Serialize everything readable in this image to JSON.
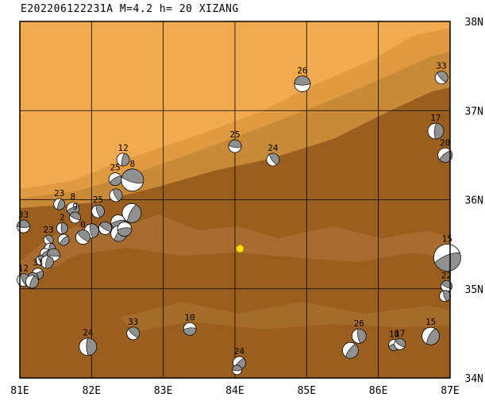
{
  "title": "E202206122231A M=4.2 h= 20 XIZANG",
  "map": {
    "lon_range": [
      81,
      87
    ],
    "lat_range": [
      34,
      38
    ],
    "lon_ticks": [
      {
        "lon": 81,
        "label": "81E"
      },
      {
        "lon": 82,
        "label": "82E"
      },
      {
        "lon": 83,
        "label": "83E"
      },
      {
        "lon": 84,
        "label": "84E"
      },
      {
        "lon": 85,
        "label": "85E"
      },
      {
        "lon": 86,
        "label": "86E"
      },
      {
        "lon": 87,
        "label": "87E"
      }
    ],
    "lat_ticks": [
      {
        "lat": 38,
        "label": "38N"
      },
      {
        "lat": 37,
        "label": "37N"
      },
      {
        "lat": 36,
        "label": "36N"
      },
      {
        "lat": 35,
        "label": "35N"
      },
      {
        "lat": 34,
        "label": "34N"
      }
    ],
    "colors": {
      "plain": "#f2aa4e",
      "slope": "#e19a42",
      "upland": "#c98a38",
      "plateau": "#9a5f1f",
      "ridge": "#b4793a",
      "grid": "#000000",
      "beachball_dark": "#909090",
      "beachball_light": "#ffffff",
      "epicenter": "#ffe000"
    },
    "epicenter": {
      "lon": 84.07,
      "lat": 35.45
    }
  },
  "mechanisms": [
    {
      "label": "26",
      "lon": 84.94,
      "lat": 37.3,
      "r": 10
    },
    {
      "label": "33",
      "lon": 86.88,
      "lat": 37.37,
      "r": 8
    },
    {
      "label": "17",
      "lon": 86.8,
      "lat": 36.77,
      "r": 10
    },
    {
      "label": "20",
      "lon": 86.93,
      "lat": 36.5,
      "r": 9
    },
    {
      "label": "25",
      "lon": 84.0,
      "lat": 36.6,
      "r": 8
    },
    {
      "label": "24",
      "lon": 84.53,
      "lat": 36.45,
      "r": 8
    },
    {
      "label": "12",
      "lon": 82.44,
      "lat": 36.45,
      "r": 8
    },
    {
      "label": "25",
      "lon": 82.33,
      "lat": 36.23,
      "r": 8
    },
    {
      "label": "8",
      "lon": 82.57,
      "lat": 36.22,
      "r": 14
    },
    {
      "label": "",
      "lon": 82.34,
      "lat": 36.05,
      "r": 8
    },
    {
      "label": "23",
      "lon": 81.55,
      "lat": 35.95,
      "r": 7
    },
    {
      "label": "8",
      "lon": 81.74,
      "lat": 35.9,
      "r": 8
    },
    {
      "label": "9",
      "lon": 81.77,
      "lat": 35.8,
      "r": 7
    },
    {
      "label": "25",
      "lon": 82.09,
      "lat": 35.87,
      "r": 8
    },
    {
      "label": "",
      "lon": 82.56,
      "lat": 35.85,
      "r": 12
    },
    {
      "label": "",
      "lon": 82.37,
      "lat": 35.75,
      "r": 9
    },
    {
      "label": "",
      "lon": 82.19,
      "lat": 35.68,
      "r": 8
    },
    {
      "label": "",
      "lon": 82.0,
      "lat": 35.65,
      "r": 9
    },
    {
      "label": "",
      "lon": 82.38,
      "lat": 35.62,
      "r": 10
    },
    {
      "label": "",
      "lon": 82.46,
      "lat": 35.67,
      "r": 9
    },
    {
      "label": "0",
      "lon": 81.88,
      "lat": 35.58,
      "r": 9
    },
    {
      "label": "2",
      "lon": 81.59,
      "lat": 35.68,
      "r": 7
    },
    {
      "label": "",
      "lon": 81.61,
      "lat": 35.55,
      "r": 7
    },
    {
      "label": "33",
      "lon": 81.05,
      "lat": 35.7,
      "r": 8
    },
    {
      "label": "23",
      "lon": 81.4,
      "lat": 35.55,
      "r": 6
    },
    {
      "label": "",
      "lon": 81.42,
      "lat": 35.45,
      "r": 7
    },
    {
      "label": "",
      "lon": 81.35,
      "lat": 35.4,
      "r": 6
    },
    {
      "label": "",
      "lon": 81.47,
      "lat": 35.38,
      "r": 8
    },
    {
      "label": "",
      "lon": 81.29,
      "lat": 35.32,
      "r": 6
    },
    {
      "label": "",
      "lon": 81.38,
      "lat": 35.3,
      "r": 8
    },
    {
      "label": "33",
      "lon": 81.25,
      "lat": 35.17,
      "r": 7
    },
    {
      "label": "",
      "lon": 81.18,
      "lat": 35.12,
      "r": 7
    },
    {
      "label": "12",
      "lon": 81.05,
      "lat": 35.1,
      "r": 8
    },
    {
      "label": "",
      "lon": 81.17,
      "lat": 35.08,
      "r": 8
    },
    {
      "label": "15",
      "lon": 86.96,
      "lat": 35.35,
      "r": 17
    },
    {
      "label": "22",
      "lon": 86.95,
      "lat": 35.03,
      "r": 7
    },
    {
      "label": "",
      "lon": 86.93,
      "lat": 34.92,
      "r": 7
    },
    {
      "label": "15",
      "lon": 86.73,
      "lat": 34.47,
      "r": 11
    },
    {
      "label": "18",
      "lon": 86.22,
      "lat": 34.37,
      "r": 7
    },
    {
      "label": "17",
      "lon": 86.3,
      "lat": 34.38,
      "r": 7
    },
    {
      "label": "26",
      "lon": 85.73,
      "lat": 34.47,
      "r": 9
    },
    {
      "label": "",
      "lon": 85.61,
      "lat": 34.31,
      "r": 10
    },
    {
      "label": "10",
      "lon": 83.37,
      "lat": 34.55,
      "r": 8
    },
    {
      "label": "33",
      "lon": 82.58,
      "lat": 34.5,
      "r": 8
    },
    {
      "label": "24",
      "lon": 81.95,
      "lat": 34.35,
      "r": 11
    },
    {
      "label": "24",
      "lon": 84.06,
      "lat": 34.17,
      "r": 8
    },
    {
      "label": "",
      "lon": 84.03,
      "lat": 34.09,
      "r": 6
    }
  ]
}
